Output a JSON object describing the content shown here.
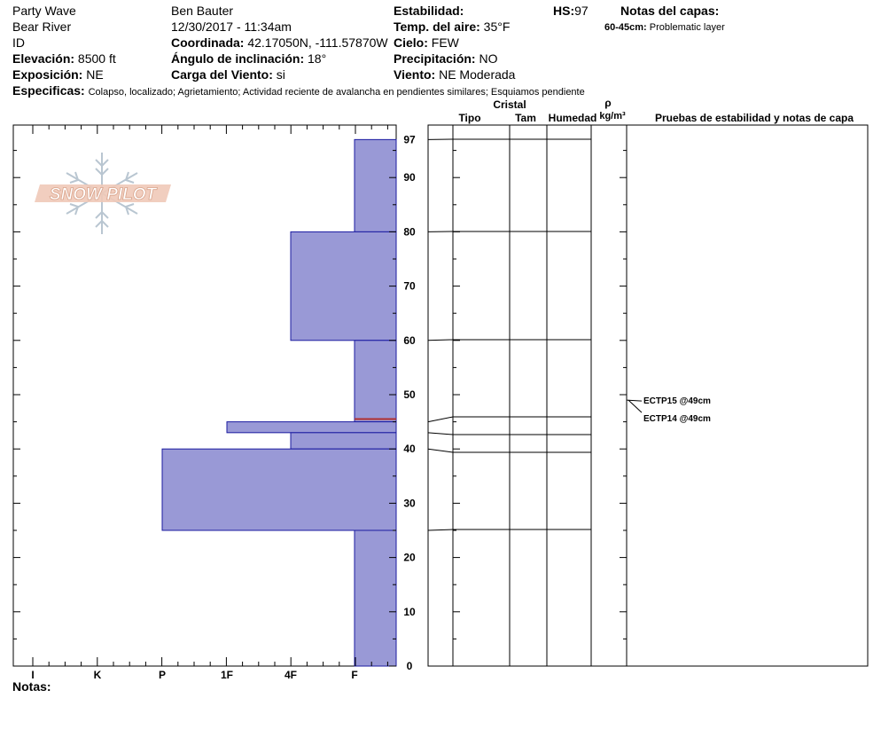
{
  "header": {
    "col1": [
      "Party Wave",
      "Bear River",
      "ID"
    ],
    "elevation_label": "Elevación:",
    "elevation_value": "8500 ft",
    "exposure_label": "Exposición:",
    "exposure_value": "NE",
    "observer": "Ben Bauter",
    "datetime": "12/30/2017 - 11:34am",
    "coord_label": "Coordinada:",
    "coord_value": "42.17050N, -111.57870W",
    "slope_label": "Ángulo de inclinación:",
    "slope_value": "18°",
    "wind_load_label": "Carga del Viento:",
    "wind_load_value": "si",
    "stability_label": "Estabilidad:",
    "air_temp_label": "Temp. del aire:",
    "air_temp_value": "35°F",
    "sky_label": "Cielo:",
    "sky_value": "FEW",
    "precip_label": "Precipitación:",
    "precip_value": "NO",
    "wind_label": "Viento:",
    "wind_value": "NE Moderada",
    "hs_label": "HS:",
    "hs_value": "97",
    "layer_notes_label": "Notas del capas:",
    "layer_note_depth": "60-45cm:",
    "layer_note_text": "Problematic layer",
    "specifics_label": "Especificas:",
    "specifics_value": "Colapso, localizado; Agrietamiento; Actividad reciente de avalancha en pendientes similares; Esquiamos pendiente",
    "notes_label": "Notas:"
  },
  "logo_text": "SNOW PILOT",
  "table_headers": {
    "tipo": "Tipo",
    "cristal": "Cristal",
    "tam": "Tam",
    "humedad": "Humedad",
    "rho": "ρ",
    "density_unit": "kg/m³",
    "tests": "Pruebas de estabilidad y notas de capa"
  },
  "tests": [
    "ECTP15 @49cm",
    "ECTP14 @49cm"
  ],
  "colors": {
    "hardness_fill": "#9999d6",
    "hardness_stroke": "#1a1aa0",
    "weak_layer": "#b03030"
  },
  "chart_data": {
    "type": "bar",
    "hardness_scale": [
      "I",
      "K",
      "P",
      "1F",
      "4F",
      "F"
    ],
    "y_ticks": [
      "0",
      "10",
      "20",
      "30",
      "40",
      "50",
      "60",
      "70",
      "80",
      "90",
      "97"
    ],
    "ylim": [
      0,
      97
    ],
    "layers": [
      {
        "top": 97,
        "bottom": 80,
        "hardness": "F"
      },
      {
        "top": 80,
        "bottom": 60,
        "hardness": "4F"
      },
      {
        "top": 60,
        "bottom": 45,
        "hardness": "F"
      },
      {
        "top": 45,
        "bottom": 43,
        "hardness": "1F"
      },
      {
        "top": 43,
        "bottom": 40,
        "hardness": "4F"
      },
      {
        "top": 40,
        "bottom": 25,
        "hardness": "P"
      },
      {
        "top": 25,
        "bottom": 0,
        "hardness": "F"
      }
    ],
    "weak_layer_depth": 45.5,
    "test_depth": 49
  }
}
